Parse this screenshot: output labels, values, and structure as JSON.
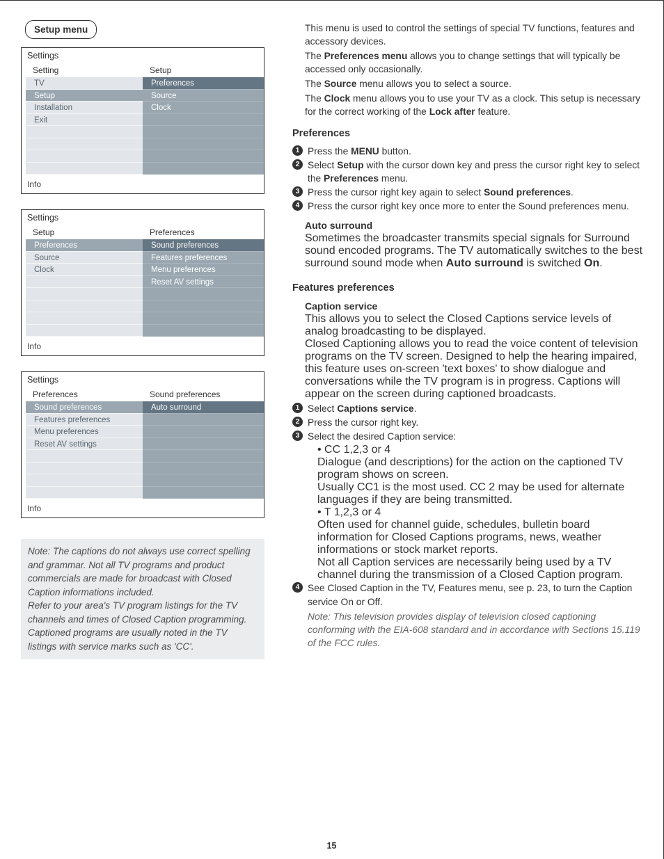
{
  "page_number": "15",
  "setup_menu_label": "Setup menu",
  "menus": [
    {
      "title": "Settings",
      "left_head": "Setting",
      "right_head": "Setup",
      "left_items": [
        "TV",
        "Setup",
        "Installation",
        "Exit",
        "",
        "",
        "",
        ""
      ],
      "left_sel": 1,
      "right_items": [
        "Preferences",
        "Source",
        "Clock",
        "",
        "",
        "",
        "",
        ""
      ],
      "right_sel": 0,
      "footer": "Info"
    },
    {
      "title": "Settings",
      "left_head": "Setup",
      "right_head": "Preferences",
      "left_items": [
        "Preferences",
        "Source",
        "Clock",
        "",
        "",
        "",
        "",
        ""
      ],
      "left_sel": 0,
      "right_items": [
        "Sound preferences",
        "Features preferences",
        "Menu preferences",
        "Reset AV settings",
        "",
        "",
        "",
        ""
      ],
      "right_sel": 0,
      "footer": "Info"
    },
    {
      "title": "Settings",
      "left_head": "Preferences",
      "right_head": "Sound preferences",
      "left_items": [
        "Sound preferences",
        "Features preferences",
        "Menu preferences",
        "Reset AV settings",
        "",
        "",
        "",
        ""
      ],
      "left_sel": 0,
      "right_items": [
        "Auto surround",
        "",
        "",
        "",
        "",
        "",
        "",
        ""
      ],
      "right_sel": 0,
      "footer": "Info"
    }
  ],
  "note_text": "Note: The captions do not always use correct spelling and grammar. Not all TV programs and product commercials are made for broadcast with Closed Caption informations included.\nRefer to your area's TV program listings for the TV channels and times of Closed Caption programming. Captioned programs are usually noted in the TV listings with service marks such as 'CC'.",
  "intro": [
    {
      "plain": "This menu is used to control the settings of special TV functions, features and accessory devices."
    },
    {
      "html": "The <b>Preferences menu</b> allows you to change settings that will typically be accessed only occasionally."
    },
    {
      "html": "The <b>Source</b> menu allows you to select a source."
    },
    {
      "html": "The <b>Clock</b> menu allows you to use your TV as a clock. This setup is necessary for the correct working of the <b>Lock after</b> feature."
    }
  ],
  "preferences_head": "Preferences",
  "pref_steps": [
    "Press the <b>MENU</b> button.",
    "Select <b>Setup</b> with the cursor down key and press the cursor right key to select the <b>Preferences</b> menu.",
    "Press the cursor right key again to select <b>Sound preferences</b>.",
    "Press the cursor right key once more to enter the Sound preferences menu."
  ],
  "auto_head": "Auto surround",
  "auto_text": "Sometimes the broadcaster transmits special signals for Surround sound encoded programs. The TV automatically switches to the best surround sound mode when <b>Auto surround</b> is switched <b>On</b>.",
  "features_head": "Features preferences",
  "caption_head": "Caption service",
  "caption_intro1": "This allows you to select the Closed Captions service levels of analog broadcasting to be displayed.",
  "caption_intro2": "Closed Captioning allows you to read the voice content of television programs on the TV screen. Designed to help the hearing impaired, this feature uses on-screen 'text boxes' to show dialogue and conversations while the TV program is in progress. Captions will appear on the screen during captioned broadcasts.",
  "cap_steps": [
    "Select <b>Captions service</b>.",
    "Press the cursor right key.",
    "Select the desired Caption service:"
  ],
  "cc_bullet": "• CC 1,2,3 or 4",
  "cc_text1": "Dialogue (and descriptions) for the action on the captioned TV program shows on screen.",
  "cc_text2": "Usually CC1 is the most used. CC 2 may be used for alternate languages if they are being transmitted.",
  "t_bullet": "• T 1,2,3 or 4",
  "t_text1": "Often used for channel guide, schedules, bulletin board information for Closed Captions programs, news, weather informations or stock market reports.",
  "t_text2": "Not all Caption services are necessarily being used by a TV channel during the transmission of a Closed Caption program.",
  "cap_step4": "See Closed Caption in the TV, Features menu, see p. 23, to turn the Caption service On or Off.",
  "cap_note": "Note: This television provides display of television closed captioning conforming with the EIA-608 standard and in accordance with Sections 15.119 of the FCC rules.",
  "colors": {
    "menu_left_bg": "#e2e6ea",
    "menu_left_sel": "#9aa7b0",
    "menu_right_bg": "#9aa7b0",
    "menu_right_sel": "#647583",
    "note_bg": "#ebeced"
  }
}
